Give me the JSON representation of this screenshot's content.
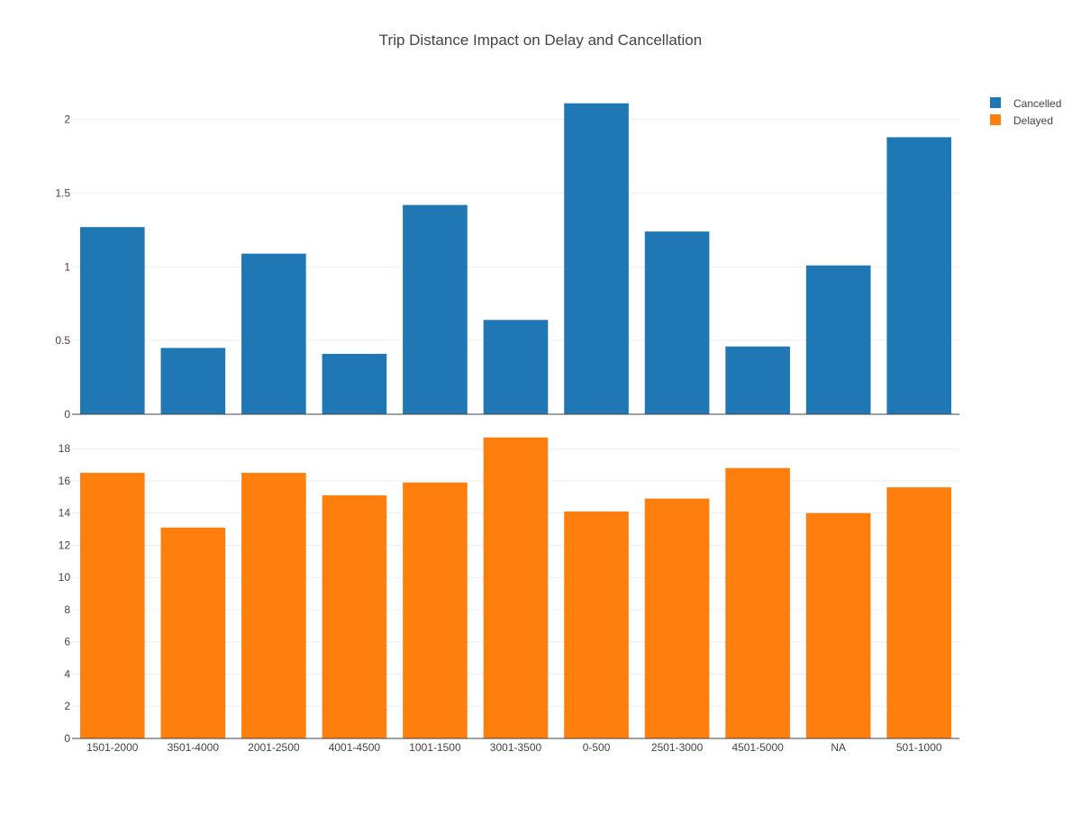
{
  "chart_data": {
    "type": "bar",
    "title": "Trip Distance Impact on Delay and Cancellation",
    "categories": [
      "1501-2000",
      "3501-4000",
      "2001-2500",
      "4001-4500",
      "1001-1500",
      "3001-3500",
      "0-500",
      "2501-3000",
      "4501-5000",
      "NA",
      "501-1000"
    ],
    "series": [
      {
        "name": "Cancelled",
        "color": "#1f77b4",
        "values": [
          1.27,
          0.45,
          1.09,
          0.41,
          1.42,
          0.64,
          2.11,
          1.24,
          0.46,
          1.01,
          1.88
        ],
        "ylim": [
          0,
          2.2
        ],
        "yticks": [
          0,
          0.5,
          1,
          1.5,
          2
        ],
        "ytick_labels": [
          "0",
          "0.5",
          "1",
          "1.5",
          "2"
        ]
      },
      {
        "name": "Delayed",
        "color": "#ff7f0e",
        "values": [
          16.5,
          13.1,
          16.5,
          15.1,
          15.9,
          18.7,
          14.1,
          14.9,
          16.8,
          14.0,
          15.6
        ],
        "ylim": [
          0,
          19.3
        ],
        "yticks": [
          0,
          2,
          4,
          6,
          8,
          10,
          12,
          14,
          16,
          18
        ],
        "ytick_labels": [
          "0",
          "2",
          "4",
          "6",
          "8",
          "10",
          "12",
          "14",
          "16",
          "18"
        ]
      }
    ],
    "xlabel": "",
    "ylabel": "",
    "grid": true,
    "legend_position": "top-right"
  }
}
